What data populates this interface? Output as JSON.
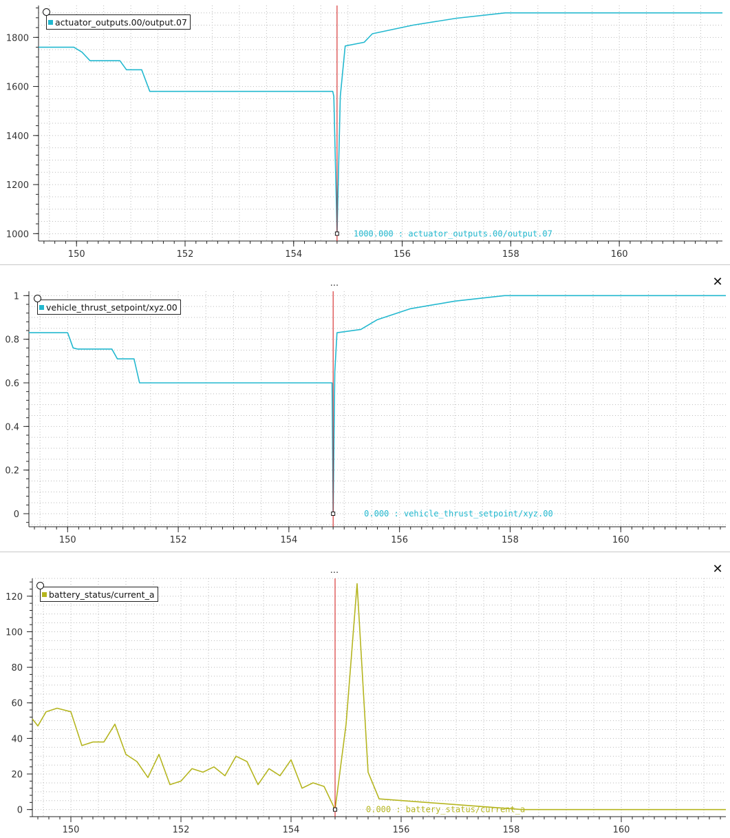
{
  "panels": [
    {
      "has_header": false,
      "handle_label": "",
      "close_label": "",
      "legend_label": "actuator_outputs.00/output.07",
      "tracker_label": "1000.000 : actuator_outputs.00/output.07",
      "color": "#22b8cf"
    },
    {
      "has_header": true,
      "handle_label": "...",
      "close_label": "✕",
      "legend_label": "vehicle_thrust_setpoint/xyz.00",
      "tracker_label": "0.000 : vehicle_thrust_setpoint/xyz.00",
      "color": "#22b8cf"
    },
    {
      "has_header": true,
      "handle_label": "...",
      "close_label": "✕",
      "legend_label": "battery_status/current_a",
      "tracker_label": "0.000 : battery_status/current_a",
      "color": "#b5b51f"
    }
  ],
  "chart_data": [
    {
      "type": "line",
      "series": [
        {
          "name": "actuator_outputs.00/output.07",
          "x": [
            149.3,
            149.95,
            150.1,
            150.25,
            150.8,
            150.92,
            151.2,
            151.35,
            154.72,
            154.74,
            154.8,
            154.86,
            154.95,
            155.3,
            155.45,
            156.2,
            157.0,
            157.9,
            161.9
          ],
          "y": [
            1760,
            1760,
            1740,
            1705,
            1705,
            1668,
            1668,
            1580,
            1580,
            1560,
            1000,
            1560,
            1765,
            1780,
            1815,
            1850,
            1878,
            1900,
            1900
          ]
        }
      ],
      "xlim": [
        149.3,
        161.9
      ],
      "ylim": [
        970,
        1930
      ],
      "xticks": [
        150,
        152,
        154,
        156,
        158,
        160
      ],
      "yticks": [
        1000,
        1200,
        1400,
        1600,
        1800
      ],
      "cursor_x": 154.8,
      "grid": true
    },
    {
      "type": "line",
      "series": [
        {
          "name": "vehicle_thrust_setpoint/xyz.00",
          "x": [
            149.3,
            150.0,
            150.1,
            150.18,
            150.8,
            150.9,
            151.2,
            151.3,
            153.2,
            154.78,
            154.8,
            154.83,
            154.87,
            155.3,
            155.6,
            156.2,
            157.0,
            157.9,
            161.9
          ],
          "y": [
            0.83,
            0.83,
            0.76,
            0.755,
            0.755,
            0.71,
            0.71,
            0.6,
            0.6,
            0.6,
            0.0,
            0.65,
            0.83,
            0.845,
            0.89,
            0.94,
            0.975,
            1.0,
            1.0
          ]
        }
      ],
      "xlim": [
        149.3,
        161.9
      ],
      "ylim": [
        -0.06,
        1.02
      ],
      "xticks": [
        150,
        152,
        154,
        156,
        158,
        160
      ],
      "yticks": [
        0,
        0.2,
        0.4,
        0.6,
        0.8,
        1
      ],
      "cursor_x": 154.8,
      "grid": true
    },
    {
      "type": "line",
      "series": [
        {
          "name": "battery_status/current_a",
          "x": [
            149.3,
            149.4,
            149.55,
            149.75,
            150.0,
            150.2,
            150.4,
            150.6,
            150.8,
            151.0,
            151.2,
            151.4,
            151.6,
            151.8,
            152.0,
            152.2,
            152.4,
            152.6,
            152.8,
            153.0,
            153.2,
            153.4,
            153.6,
            153.8,
            154.0,
            154.2,
            154.4,
            154.6,
            154.8,
            155.0,
            155.2,
            155.4,
            155.6,
            158.2,
            161.9
          ],
          "y": [
            51,
            47,
            55,
            57,
            55,
            36,
            38,
            38,
            48,
            31,
            27,
            18,
            31,
            14,
            16,
            23,
            21,
            24,
            19,
            30,
            27,
            14,
            23,
            19,
            28,
            12,
            15,
            13,
            0,
            48,
            127,
            21,
            6,
            0,
            0
          ]
        }
      ],
      "xlim": [
        149.3,
        161.9
      ],
      "ylim": [
        -4,
        130
      ],
      "xticks": [
        150,
        152,
        154,
        156,
        158,
        160
      ],
      "yticks": [
        0,
        20,
        40,
        60,
        80,
        100,
        120
      ],
      "cursor_x": 154.8,
      "grid": true
    }
  ]
}
